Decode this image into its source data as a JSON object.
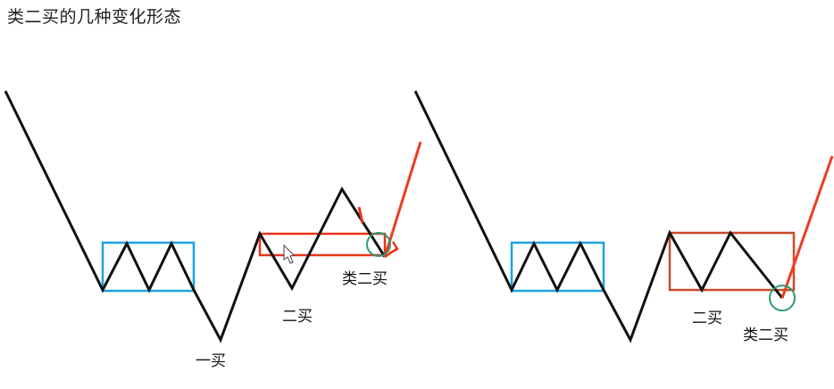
{
  "title": "类二买的几种变化形态",
  "labels": {
    "first_buy": "一买",
    "second_buy_left": "二买",
    "second_buy_right": "二买",
    "class_second_buy_left": "类二买",
    "class_second_buy_right": "类二买"
  },
  "colors": {
    "price_line": "#111111",
    "pivot_box": "#1aa3e0",
    "second_pivot_box": "#e8341c",
    "breakout_line": "#ef3b22",
    "marker_circle": "#2e9b74"
  },
  "icons": [
    "cursor-arrow-icon"
  ]
}
